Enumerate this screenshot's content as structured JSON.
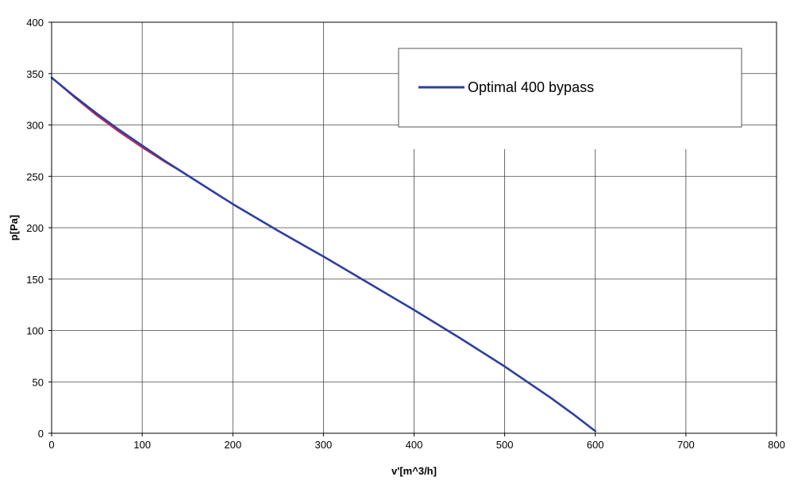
{
  "chart_data": {
    "type": "line",
    "title": "",
    "xlabel": "v'[m^3/h]",
    "ylabel": "p[Pa]",
    "xlim": [
      0,
      800
    ],
    "ylim": [
      0,
      400
    ],
    "x_ticks": [
      0,
      100,
      200,
      300,
      400,
      500,
      600,
      700,
      800
    ],
    "y_ticks": [
      0,
      50,
      100,
      150,
      200,
      250,
      300,
      350,
      400
    ],
    "grid": true,
    "legend_position": "top-right",
    "series": [
      {
        "name": "Optimal 400 bypass",
        "color": "#2e3f9e",
        "x": [
          0,
          25,
          50,
          75,
          100,
          125,
          150,
          175,
          200,
          250,
          300,
          350,
          400,
          450,
          500,
          525,
          550,
          575,
          600
        ],
        "y": [
          346,
          328,
          311,
          295,
          280,
          265,
          251,
          237,
          223,
          197,
          172,
          146,
          120,
          93,
          65,
          50,
          35,
          19,
          2
        ]
      },
      {
        "name": "",
        "color": "#cc2255",
        "x": [
          0,
          25,
          50,
          75,
          100,
          125,
          150
        ],
        "y": [
          346,
          327,
          309,
          293,
          278,
          264,
          251
        ]
      }
    ]
  }
}
